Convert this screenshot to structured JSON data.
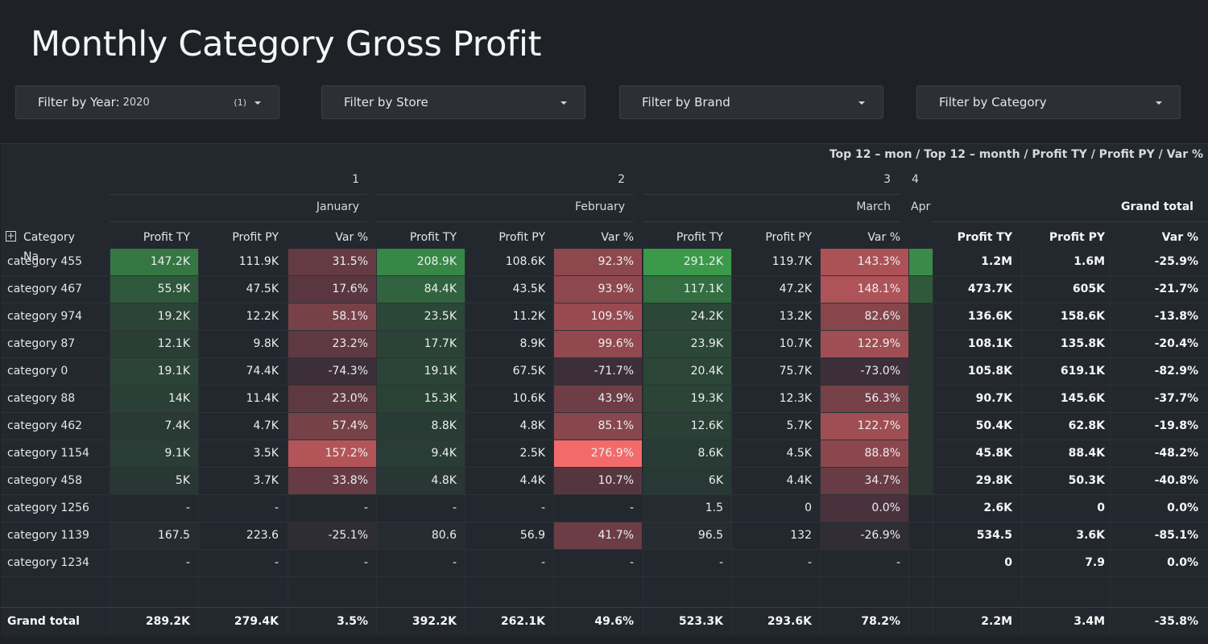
{
  "title": "Monthly Category Gross Profit",
  "filters": [
    {
      "label": "Filter by Year:",
      "value": "2020",
      "count": "(1)"
    },
    {
      "label": "Filter by Store",
      "value": "",
      "count": ""
    },
    {
      "label": "Filter by Brand",
      "value": "",
      "count": ""
    },
    {
      "label": "Filter by Category",
      "value": "",
      "count": ""
    }
  ],
  "breadcrumb": "Top 12 – mon / Top 12 – month / Profit TY / Profit PY / Var %",
  "months": [
    {
      "num": "1",
      "name": "January"
    },
    {
      "num": "2",
      "name": "February"
    },
    {
      "num": "3",
      "name": "March"
    },
    {
      "num": "4",
      "name": "Apr"
    }
  ],
  "grand_total_header": "Grand total",
  "category_header": "Category Na...",
  "measure_headers": [
    "Profit TY",
    "Profit PY",
    "Var %"
  ],
  "rows": [
    {
      "name": "category 455",
      "m": [
        [
          "147.2K",
          "111.9K",
          "31.5%"
        ],
        [
          "208.9K",
          "108.6K",
          "92.3%"
        ],
        [
          "291.2K",
          "119.7K",
          "143.3%"
        ]
      ],
      "t": [
        "1.2M",
        "1.6M",
        "-25.9%"
      ]
    },
    {
      "name": "category 467",
      "m": [
        [
          "55.9K",
          "47.5K",
          "17.6%"
        ],
        [
          "84.4K",
          "43.5K",
          "93.9%"
        ],
        [
          "117.1K",
          "47.2K",
          "148.1%"
        ]
      ],
      "t": [
        "473.7K",
        "605K",
        "-21.7%"
      ]
    },
    {
      "name": "category 974",
      "m": [
        [
          "19.2K",
          "12.2K",
          "58.1%"
        ],
        [
          "23.5K",
          "11.2K",
          "109.5%"
        ],
        [
          "24.2K",
          "13.2K",
          "82.6%"
        ]
      ],
      "t": [
        "136.6K",
        "158.6K",
        "-13.8%"
      ]
    },
    {
      "name": "category 87",
      "m": [
        [
          "12.1K",
          "9.8K",
          "23.2%"
        ],
        [
          "17.7K",
          "8.9K",
          "99.6%"
        ],
        [
          "23.9K",
          "10.7K",
          "122.9%"
        ]
      ],
      "t": [
        "108.1K",
        "135.8K",
        "-20.4%"
      ]
    },
    {
      "name": "category 0",
      "m": [
        [
          "19.1K",
          "74.4K",
          "-74.3%"
        ],
        [
          "19.1K",
          "67.5K",
          "-71.7%"
        ],
        [
          "20.4K",
          "75.7K",
          "-73.0%"
        ]
      ],
      "t": [
        "105.8K",
        "619.1K",
        "-82.9%"
      ]
    },
    {
      "name": "category 88",
      "m": [
        [
          "14K",
          "11.4K",
          "23.0%"
        ],
        [
          "15.3K",
          "10.6K",
          "43.9%"
        ],
        [
          "19.3K",
          "12.3K",
          "56.3%"
        ]
      ],
      "t": [
        "90.7K",
        "145.6K",
        "-37.7%"
      ]
    },
    {
      "name": "category 462",
      "m": [
        [
          "7.4K",
          "4.7K",
          "57.4%"
        ],
        [
          "8.8K",
          "4.8K",
          "85.1%"
        ],
        [
          "12.6K",
          "5.7K",
          "122.7%"
        ]
      ],
      "t": [
        "50.4K",
        "62.8K",
        "-19.8%"
      ]
    },
    {
      "name": "category 1154",
      "m": [
        [
          "9.1K",
          "3.5K",
          "157.2%"
        ],
        [
          "9.4K",
          "2.5K",
          "276.9%"
        ],
        [
          "8.6K",
          "4.5K",
          "88.8%"
        ]
      ],
      "t": [
        "45.8K",
        "88.4K",
        "-48.2%"
      ]
    },
    {
      "name": "category 458",
      "m": [
        [
          "5K",
          "3.7K",
          "33.8%"
        ],
        [
          "4.8K",
          "4.4K",
          "10.7%"
        ],
        [
          "6K",
          "4.4K",
          "34.7%"
        ]
      ],
      "t": [
        "29.8K",
        "50.3K",
        "-40.8%"
      ]
    },
    {
      "name": "category 1256",
      "m": [
        [
          "-",
          "-",
          "-"
        ],
        [
          "-",
          "-",
          "-"
        ],
        [
          "1.5",
          "0",
          "0.0%"
        ]
      ],
      "t": [
        "2.6K",
        "0",
        "0.0%"
      ]
    },
    {
      "name": "category 1139",
      "m": [
        [
          "167.5",
          "223.6",
          "-25.1%"
        ],
        [
          "80.6",
          "56.9",
          "41.7%"
        ],
        [
          "96.5",
          "132",
          "-26.9%"
        ]
      ],
      "t": [
        "534.5",
        "3.6K",
        "-85.1%"
      ]
    },
    {
      "name": "category 1234",
      "m": [
        [
          "-",
          "-",
          "-"
        ],
        [
          "-",
          "-",
          "-"
        ],
        [
          "-",
          "-",
          "-"
        ]
      ],
      "t": [
        "0",
        "7.9",
        "0.0%"
      ]
    }
  ],
  "grand_total": {
    "name": "Grand total",
    "m": [
      [
        "289.2K",
        "279.4K",
        "3.5%"
      ],
      [
        "392.2K",
        "262.1K",
        "49.6%"
      ],
      [
        "523.3K",
        "293.6K",
        "78.2%"
      ]
    ],
    "t": [
      "2.2M",
      "3.4M",
      "-35.8%"
    ]
  },
  "colors": {
    "background": "#1f2126",
    "table_bg": "#23272e",
    "positive": "#3b9a4a",
    "var_high": "#f46a6a",
    "var_low": "#3a2f38"
  }
}
